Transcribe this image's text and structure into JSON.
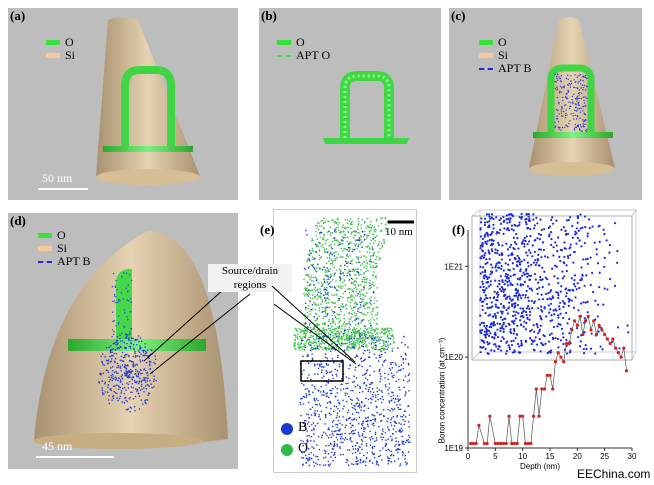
{
  "panels": {
    "a": {
      "label": "(a)",
      "legend": [
        {
          "text": "O",
          "color": "#39e23c"
        },
        {
          "text": "Si",
          "color": "#f5c99d"
        }
      ],
      "scale": "50 nm"
    },
    "b": {
      "label": "(b)",
      "legend": [
        {
          "text": "O",
          "color": "#39e23c"
        },
        {
          "text": "APT O",
          "color": "#39e23c"
        }
      ]
    },
    "c": {
      "label": "(c)",
      "legend": [
        {
          "text": "O",
          "color": "#39e23c"
        },
        {
          "text": "Si",
          "color": "#f5c99d"
        },
        {
          "text": "APT B",
          "color": "#1a2bd6"
        }
      ]
    },
    "d": {
      "label": "(d)",
      "legend": [
        {
          "text": "O",
          "color": "#39e23c"
        },
        {
          "text": "Si",
          "color": "#f5c99d"
        },
        {
          "text": "APT B",
          "color": "#1a2bd6"
        }
      ],
      "scale": "45 nm"
    },
    "e": {
      "label": "(e)",
      "scale": "10 nm",
      "legend": [
        {
          "text": "B",
          "color": "#1a3bd0"
        },
        {
          "text": "O",
          "color": "#2fba4a"
        }
      ]
    },
    "f": {
      "label": "(f)"
    }
  },
  "annotation": {
    "line1": "Source/drain",
    "line2": "regions"
  },
  "chart_data": {
    "type": "scatter",
    "title": "",
    "xlabel": "Depth (nm)",
    "ylabel": "Boron concentration (at cm⁻³)",
    "x_ticks": [
      "0",
      "5",
      "10",
      "15",
      "20",
      "25",
      "30"
    ],
    "y_ticks": [
      "1E19",
      "1E20",
      "1E21"
    ],
    "xlim": [
      0,
      30
    ],
    "ylim_log10": [
      19,
      21.4
    ],
    "y_scale": "log",
    "series": [
      {
        "color": "#d62020",
        "x": [
          0.5,
          1,
          1.5,
          2,
          3,
          3.5,
          4,
          5,
          5.5,
          6,
          6.5,
          7,
          7.5,
          8,
          8.5,
          9,
          9.5,
          10,
          10.5,
          11,
          11.5,
          12,
          12.5,
          13,
          13.5,
          14,
          14.5,
          15,
          15.5,
          16,
          16.5,
          17,
          17.5,
          18,
          18.5,
          19,
          19.5,
          20,
          20.5,
          21,
          21.5,
          22,
          22.5,
          23,
          23.5,
          24,
          24.5,
          25,
          25.5,
          26,
          26.5,
          27,
          27.5,
          28,
          28.5,
          29
        ],
        "y_log10": [
          19.05,
          19.05,
          19.05,
          19.25,
          19.05,
          19.05,
          19.35,
          19.05,
          19.05,
          19.05,
          19.05,
          19.05,
          19.35,
          19.05,
          19.05,
          19.05,
          19.35,
          19.35,
          19.05,
          19.05,
          19.05,
          19.35,
          19.65,
          19.35,
          19.65,
          19.65,
          19.8,
          19.8,
          19.65,
          19.95,
          20.05,
          20.0,
          19.95,
          20.15,
          20.15,
          20.3,
          20.4,
          20.35,
          20.45,
          20.25,
          20.4,
          20.45,
          20.3,
          20.4,
          20.25,
          20.35,
          20.3,
          20.25,
          20.2,
          20.15,
          20.2,
          20.1,
          20.05,
          20.0,
          20.1,
          19.85
        ]
      }
    ]
  },
  "watermark": "EEChina.com"
}
